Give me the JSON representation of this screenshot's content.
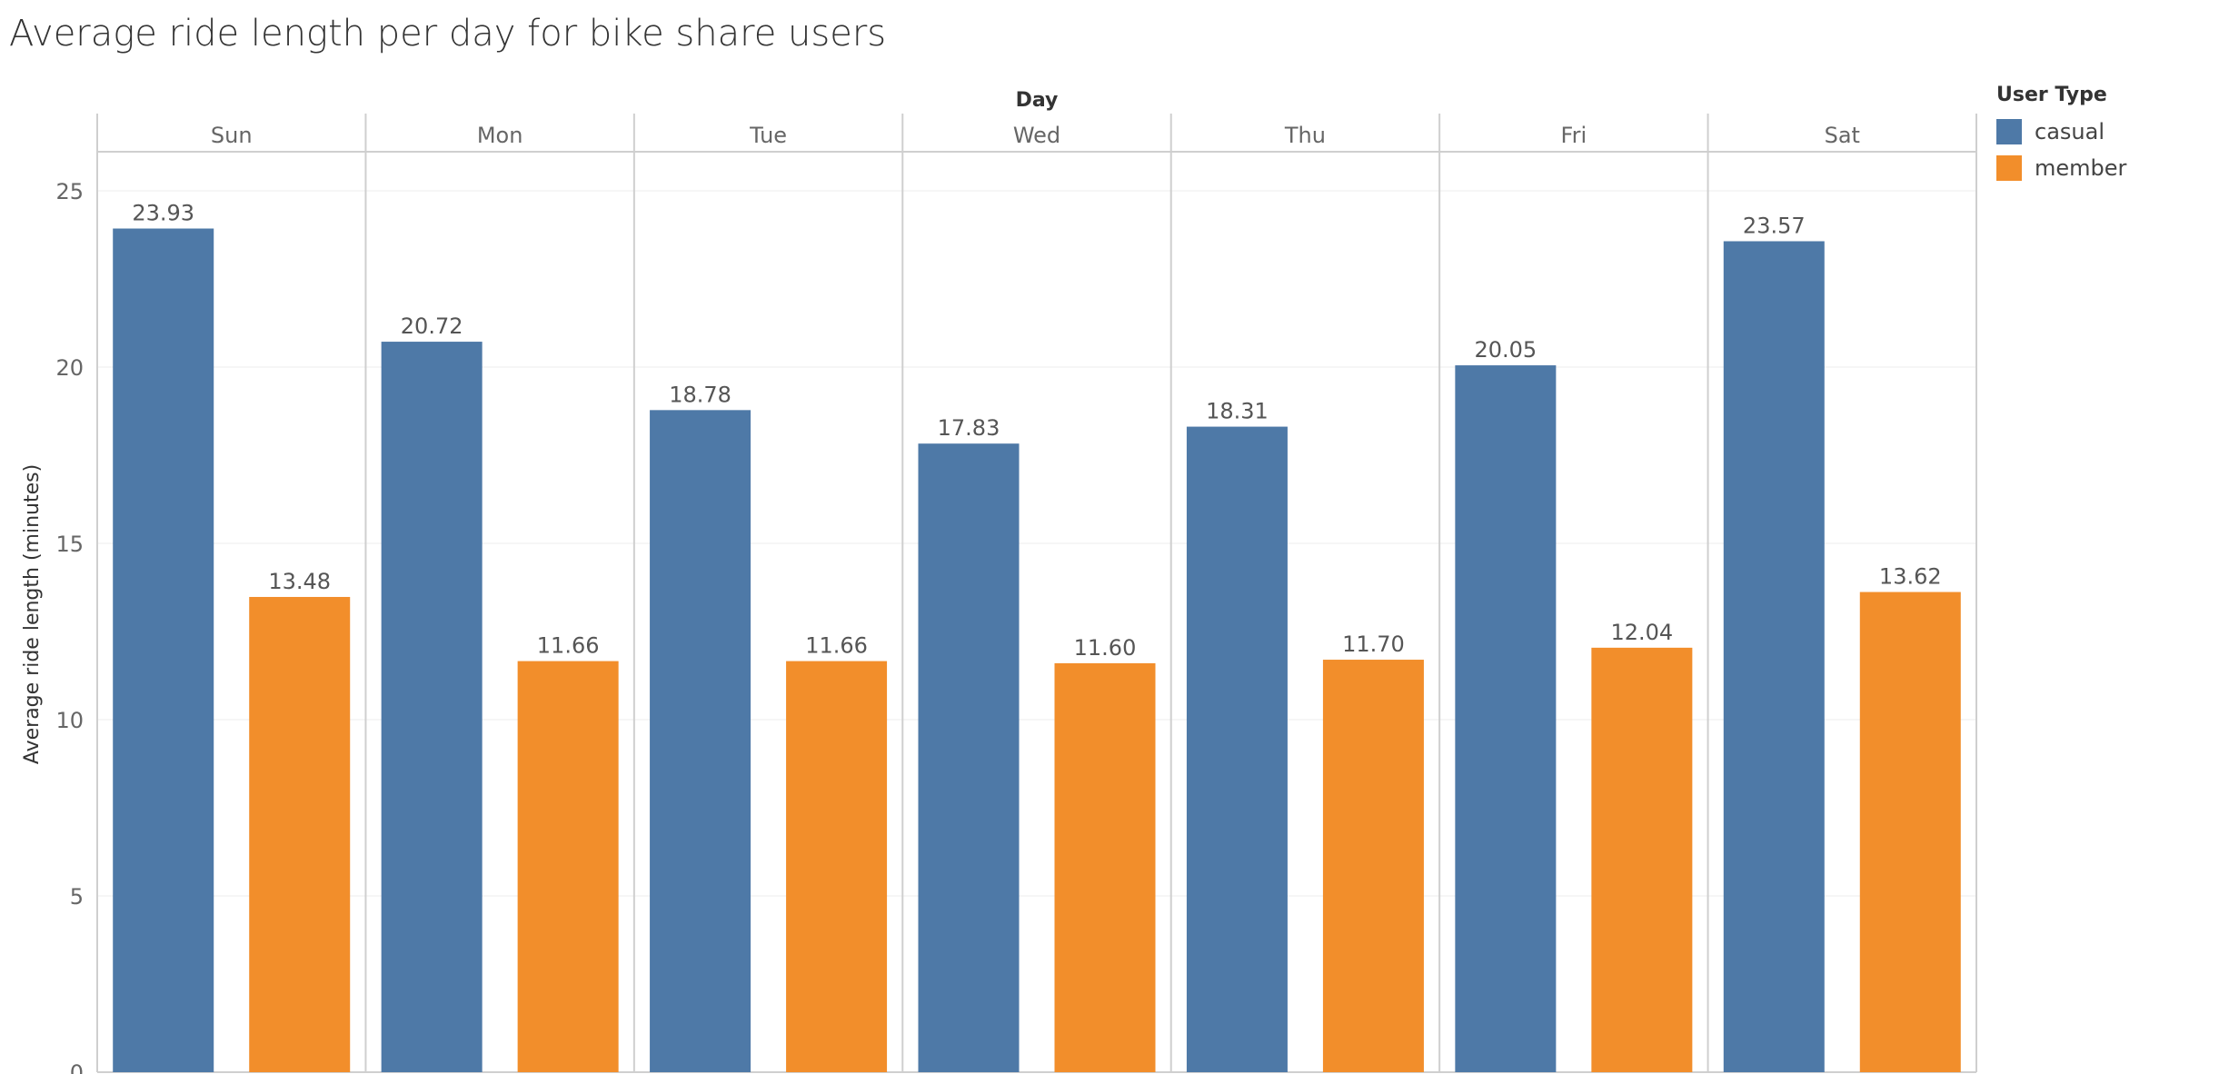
{
  "chart_data": {
    "type": "bar",
    "title": "Average ride length per day for bike share users",
    "column_header": "Day",
    "categories": [
      "Sun",
      "Mon",
      "Tue",
      "Wed",
      "Thu",
      "Fri",
      "Sat"
    ],
    "ylabel": "Average ride length (minutes)",
    "ylim": [
      0,
      25
    ],
    "yticks": [
      0,
      5,
      10,
      15,
      20,
      25
    ],
    "grid": true,
    "legend_title": "User Type",
    "legend_position": "right",
    "series": [
      {
        "name": "casual",
        "color": "#4e79a7",
        "values": [
          23.93,
          20.72,
          18.78,
          17.83,
          18.31,
          20.05,
          23.57
        ]
      },
      {
        "name": "member",
        "color": "#f28e2b",
        "values": [
          13.48,
          11.66,
          11.66,
          11.6,
          11.7,
          12.04,
          13.62
        ]
      }
    ]
  }
}
